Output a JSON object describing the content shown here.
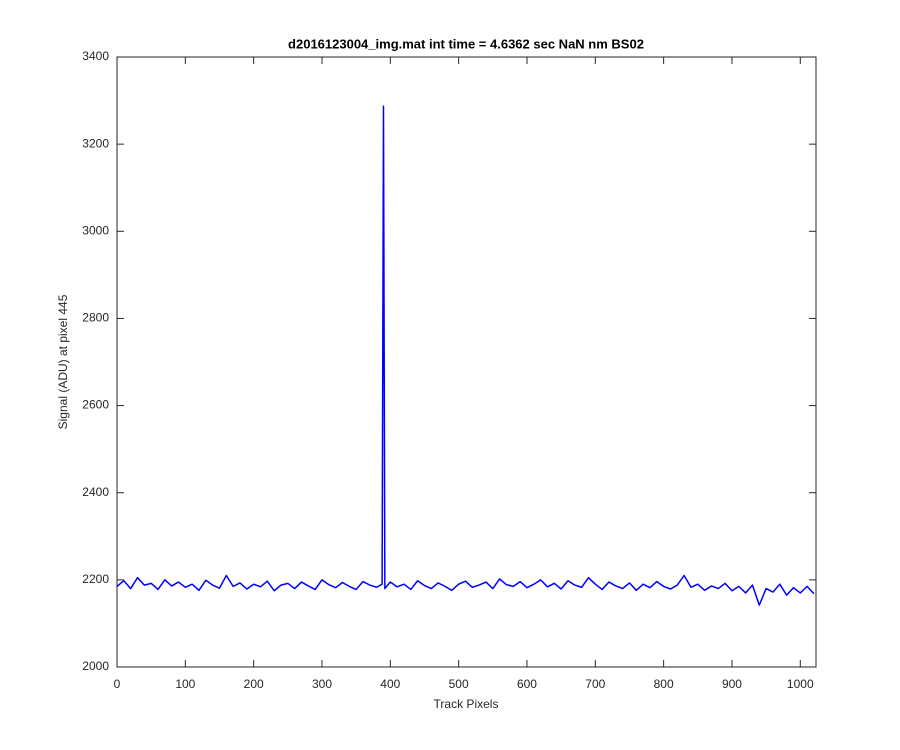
{
  "chart_data": {
    "type": "line",
    "title": "d2016123004_img.mat int time = 4.6362 sec  NaN nm BS02",
    "x_label": "Track Pixels",
    "y_label": "Signal (ADU) at pixel 445",
    "x": [
      0,
      10,
      20,
      30,
      40,
      50,
      60,
      70,
      80,
      90,
      100,
      110,
      120,
      130,
      140,
      150,
      160,
      170,
      180,
      190,
      200,
      210,
      220,
      230,
      240,
      250,
      260,
      270,
      280,
      290,
      300,
      310,
      320,
      330,
      340,
      350,
      360,
      370,
      380,
      388,
      390,
      392,
      400,
      410,
      420,
      430,
      440,
      450,
      460,
      470,
      480,
      490,
      500,
      510,
      520,
      530,
      540,
      550,
      560,
      570,
      580,
      590,
      600,
      610,
      620,
      630,
      640,
      650,
      660,
      670,
      680,
      690,
      700,
      710,
      720,
      730,
      740,
      750,
      760,
      770,
      780,
      790,
      800,
      810,
      820,
      830,
      840,
      850,
      860,
      870,
      880,
      890,
      900,
      910,
      920,
      930,
      940,
      950,
      960,
      970,
      980,
      990,
      1000,
      1010,
      1020
    ],
    "series": [
      {
        "color": "#0000ff",
        "values": [
          2185,
          2198,
          2180,
          2205,
          2188,
          2192,
          2178,
          2200,
          2186,
          2195,
          2183,
          2190,
          2176,
          2199,
          2188,
          2181,
          2210,
          2185,
          2193,
          2179,
          2190,
          2184,
          2197,
          2175,
          2188,
          2192,
          2180,
          2195,
          2186,
          2178,
          2200,
          2189,
          2182,
          2194,
          2185,
          2178,
          2196,
          2188,
          2183,
          2190,
          3287,
          2180,
          2195,
          2184,
          2190,
          2178,
          2198,
          2187,
          2180,
          2193,
          2185,
          2176,
          2190,
          2197,
          2183,
          2188,
          2195,
          2180,
          2202,
          2189,
          2185,
          2196,
          2182,
          2190,
          2200,
          2184,
          2192,
          2179,
          2198,
          2188,
          2183,
          2205,
          2190,
          2178,
          2195,
          2186,
          2180,
          2193,
          2176,
          2190,
          2182,
          2196,
          2185,
          2179,
          2188,
          2210,
          2183,
          2190,
          2176,
          2186,
          2180,
          2192,
          2175,
          2185,
          2170,
          2188,
          2142,
          2180,
          2172,
          2190,
          2165,
          2182,
          2170,
          2185,
          2168
        ]
      }
    ],
    "xlim": [
      0,
      1023
    ],
    "ylim": [
      2000,
      3400
    ],
    "xticks": [
      0,
      100,
      200,
      300,
      400,
      500,
      600,
      700,
      800,
      900,
      1000
    ],
    "yticks": [
      2000,
      2200,
      2400,
      2600,
      2800,
      3000,
      3200,
      3400
    ],
    "grid": false
  }
}
